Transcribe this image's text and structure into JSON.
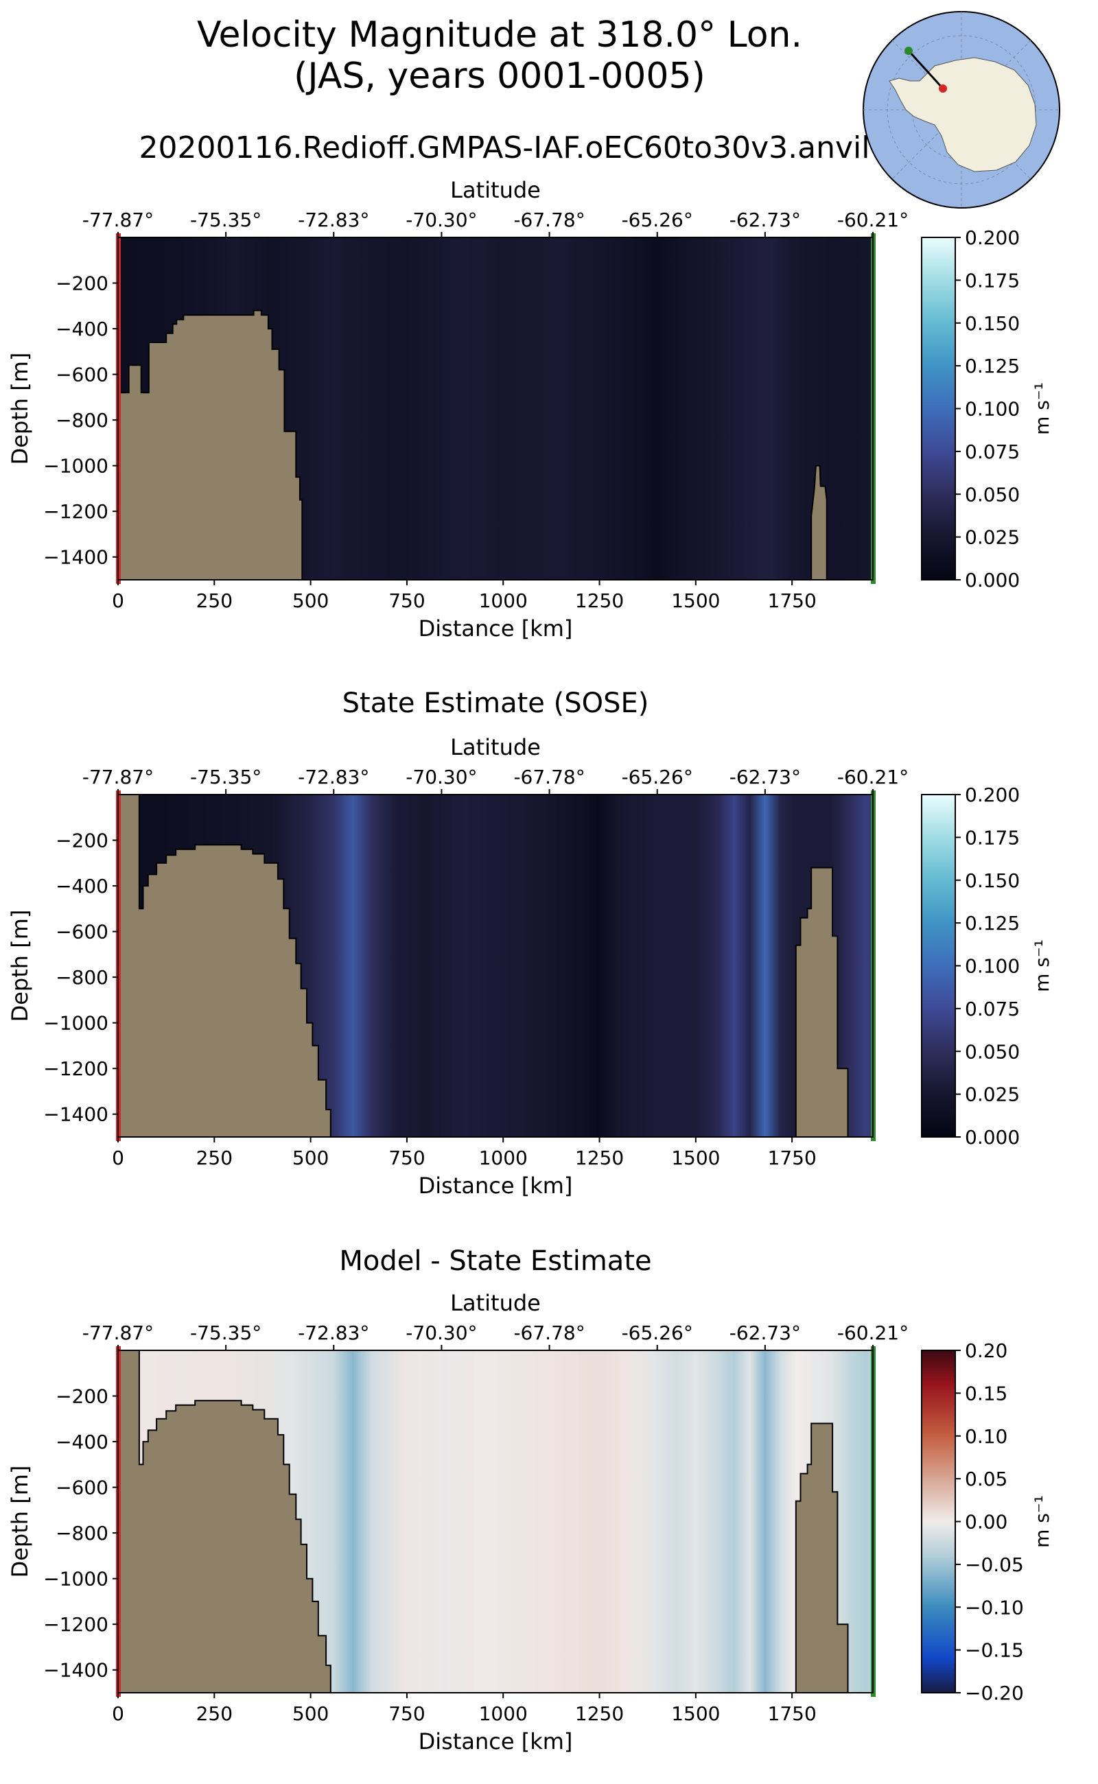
{
  "figure": {
    "title_line1": "Velocity Magnitude at 318.0° Lon.",
    "title_line2": "(JAS, years 0001-0005)",
    "run_name": "20200116.Redioff.GMPAS-IAF.oEC60to30v3.anvil"
  },
  "colors": {
    "land": "#8f8168",
    "start_marker": "#d62728",
    "end_marker": "#2a8a2a",
    "ocean_map": "#9bb8e4",
    "antarctica_map": "#f1eedd"
  },
  "chart_data": [
    {
      "type": "heatmap",
      "panel": "model",
      "title": "",
      "top_xlabel": "Latitude",
      "lat_ticks": [
        "-77.87°",
        "-75.35°",
        "-72.83°",
        "-70.30°",
        "-67.78°",
        "-65.26°",
        "-62.73°",
        "-60.21°"
      ],
      "xlabel": "Distance [km]",
      "x_ticks": [
        0,
        250,
        500,
        750,
        1000,
        1250,
        1500,
        1750
      ],
      "xlim": [
        0,
        1960
      ],
      "ylabel": "Depth [m]",
      "y_ticks": [
        -200,
        -400,
        -600,
        -800,
        -1000,
        -1200,
        -1400
      ],
      "ylim": [
        -1500,
        0
      ],
      "colorbar": {
        "label": "m s⁻¹",
        "min": 0,
        "max": 0.2,
        "ticks": [
          "0.000",
          "0.025",
          "0.050",
          "0.075",
          "0.100",
          "0.125",
          "0.150",
          "0.175",
          "0.200"
        ],
        "colormap": "ice"
      },
      "field_profile": [
        [
          0,
          0.012
        ],
        [
          150,
          0.015
        ],
        [
          250,
          0.02
        ],
        [
          300,
          0.025
        ],
        [
          400,
          0.018
        ],
        [
          480,
          0.022
        ],
        [
          560,
          0.028
        ],
        [
          600,
          0.025
        ],
        [
          750,
          0.02
        ],
        [
          900,
          0.028
        ],
        [
          1000,
          0.025
        ],
        [
          1150,
          0.027
        ],
        [
          1250,
          0.022
        ],
        [
          1330,
          0.018
        ],
        [
          1400,
          0.01
        ],
        [
          1460,
          0.018
        ],
        [
          1550,
          0.025
        ],
        [
          1650,
          0.032
        ],
        [
          1700,
          0.033
        ],
        [
          1750,
          0.025
        ],
        [
          1850,
          0.02
        ],
        [
          1960,
          0.022
        ]
      ],
      "bathymetry": [
        [
          0,
          -680
        ],
        [
          10,
          -680
        ],
        [
          28,
          -680
        ],
        [
          28,
          -560
        ],
        [
          60,
          -560
        ],
        [
          60,
          -680
        ],
        [
          80,
          -680
        ],
        [
          80,
          -460
        ],
        [
          105,
          -460
        ],
        [
          105,
          -460
        ],
        [
          125,
          -460
        ],
        [
          125,
          -420
        ],
        [
          142,
          -420
        ],
        [
          142,
          -380
        ],
        [
          152,
          -380
        ],
        [
          152,
          -360
        ],
        [
          170,
          -360
        ],
        [
          170,
          -340
        ],
        [
          352,
          -340
        ],
        [
          352,
          -320
        ],
        [
          372,
          -320
        ],
        [
          372,
          -340
        ],
        [
          390,
          -340
        ],
        [
          390,
          -400
        ],
        [
          400,
          -400
        ],
        [
          400,
          -490
        ],
        [
          418,
          -490
        ],
        [
          418,
          -580
        ],
        [
          432,
          -580
        ],
        [
          432,
          -850
        ],
        [
          462,
          -850
        ],
        [
          462,
          -1050
        ],
        [
          472,
          -1050
        ],
        [
          472,
          -1150
        ],
        [
          478,
          -1150
        ],
        [
          478,
          -1500
        ]
      ],
      "seamount": [
        [
          1800,
          -1500
        ],
        [
          1800,
          -1220
        ],
        [
          1808,
          -1100
        ],
        [
          1812,
          -1000
        ],
        [
          1822,
          -1000
        ],
        [
          1824,
          -1090
        ],
        [
          1836,
          -1090
        ],
        [
          1840,
          -1150
        ],
        [
          1840,
          -1500
        ]
      ]
    },
    {
      "type": "heatmap",
      "panel": "obs",
      "title": "State Estimate (SOSE)",
      "top_xlabel": "Latitude",
      "lat_ticks": [
        "-77.87°",
        "-75.35°",
        "-72.83°",
        "-70.30°",
        "-67.78°",
        "-65.26°",
        "-62.73°",
        "-60.21°"
      ],
      "xlabel": "Distance [km]",
      "x_ticks": [
        0,
        250,
        500,
        750,
        1000,
        1250,
        1500,
        1750
      ],
      "xlim": [
        0,
        1960
      ],
      "ylabel": "Depth [m]",
      "y_ticks": [
        -200,
        -400,
        -600,
        -800,
        -1000,
        -1200,
        -1400
      ],
      "ylim": [
        -1500,
        0
      ],
      "colorbar": {
        "label": "m s⁻¹",
        "min": 0,
        "max": 0.2,
        "ticks": [
          "0.000",
          "0.025",
          "0.050",
          "0.075",
          "0.100",
          "0.125",
          "0.150",
          "0.175",
          "0.200"
        ],
        "colormap": "ice"
      },
      "field_profile": [
        [
          0,
          0.01
        ],
        [
          200,
          0.015
        ],
        [
          400,
          0.022
        ],
        [
          500,
          0.04
        ],
        [
          560,
          0.055
        ],
        [
          610,
          0.085
        ],
        [
          660,
          0.05
        ],
        [
          720,
          0.03
        ],
        [
          800,
          0.025
        ],
        [
          900,
          0.032
        ],
        [
          1000,
          0.028
        ],
        [
          1100,
          0.025
        ],
        [
          1200,
          0.015
        ],
        [
          1250,
          0.008
        ],
        [
          1300,
          0.025
        ],
        [
          1400,
          0.03
        ],
        [
          1500,
          0.03
        ],
        [
          1560,
          0.045
        ],
        [
          1600,
          0.07
        ],
        [
          1640,
          0.04
        ],
        [
          1680,
          0.095
        ],
        [
          1720,
          0.04
        ],
        [
          1760,
          0.03
        ],
        [
          1850,
          0.03
        ],
        [
          1900,
          0.05
        ],
        [
          1940,
          0.065
        ],
        [
          1960,
          0.06
        ]
      ],
      "bathymetry": [
        [
          0,
          0
        ],
        [
          15,
          0
        ],
        [
          55,
          0
        ],
        [
          55,
          -500
        ],
        [
          65,
          -500
        ],
        [
          65,
          -400
        ],
        [
          78,
          -400
        ],
        [
          78,
          -350
        ],
        [
          100,
          -350
        ],
        [
          100,
          -300
        ],
        [
          125,
          -300
        ],
        [
          125,
          -265
        ],
        [
          150,
          -265
        ],
        [
          150,
          -240
        ],
        [
          200,
          -240
        ],
        [
          200,
          -220
        ],
        [
          320,
          -220
        ],
        [
          320,
          -240
        ],
        [
          350,
          -240
        ],
        [
          350,
          -260
        ],
        [
          380,
          -260
        ],
        [
          380,
          -300
        ],
        [
          415,
          -300
        ],
        [
          415,
          -370
        ],
        [
          430,
          -370
        ],
        [
          430,
          -500
        ],
        [
          445,
          -500
        ],
        [
          445,
          -630
        ],
        [
          462,
          -630
        ],
        [
          462,
          -740
        ],
        [
          475,
          -740
        ],
        [
          475,
          -850
        ],
        [
          490,
          -850
        ],
        [
          490,
          -1000
        ],
        [
          505,
          -1000
        ],
        [
          505,
          -1100
        ],
        [
          520,
          -1100
        ],
        [
          520,
          -1250
        ],
        [
          540,
          -1250
        ],
        [
          540,
          -1380
        ],
        [
          552,
          -1380
        ],
        [
          552,
          -1500
        ]
      ],
      "seamount": [
        [
          1760,
          -1500
        ],
        [
          1760,
          -660
        ],
        [
          1772,
          -660
        ],
        [
          1772,
          -540
        ],
        [
          1790,
          -540
        ],
        [
          1790,
          -500
        ],
        [
          1800,
          -500
        ],
        [
          1800,
          -320
        ],
        [
          1855,
          -320
        ],
        [
          1855,
          -620
        ],
        [
          1868,
          -620
        ],
        [
          1868,
          -1200
        ],
        [
          1895,
          -1200
        ],
        [
          1895,
          -1500
        ]
      ]
    },
    {
      "type": "heatmap",
      "panel": "difference",
      "title": "Model - State Estimate",
      "top_xlabel": "Latitude",
      "lat_ticks": [
        "-77.87°",
        "-75.35°",
        "-72.83°",
        "-70.30°",
        "-67.78°",
        "-65.26°",
        "-62.73°",
        "-60.21°"
      ],
      "xlabel": "Distance [km]",
      "x_ticks": [
        0,
        250,
        500,
        750,
        1000,
        1250,
        1500,
        1750
      ],
      "xlim": [
        0,
        1960
      ],
      "ylabel": "Depth [m]",
      "y_ticks": [
        -200,
        -400,
        -600,
        -800,
        -1000,
        -1200,
        -1400
      ],
      "ylim": [
        -1500,
        0
      ],
      "colorbar": {
        "label": "m s⁻¹",
        "min": -0.2,
        "max": 0.2,
        "ticks": [
          "−0.20",
          "−0.15",
          "−0.10",
          "−0.05",
          "0.00",
          "0.05",
          "0.10",
          "0.15",
          "0.20"
        ],
        "colormap": "balance"
      },
      "field_profile": [
        [
          0,
          0.003
        ],
        [
          300,
          0.006
        ],
        [
          450,
          -0.01
        ],
        [
          560,
          -0.025
        ],
        [
          610,
          -0.06
        ],
        [
          660,
          -0.02
        ],
        [
          750,
          0.004
        ],
        [
          850,
          -0.005
        ],
        [
          950,
          0.003
        ],
        [
          1100,
          0.005
        ],
        [
          1250,
          0.01
        ],
        [
          1330,
          0.004
        ],
        [
          1400,
          -0.01
        ],
        [
          1450,
          -0.02
        ],
        [
          1500,
          -0.01
        ],
        [
          1560,
          -0.025
        ],
        [
          1600,
          -0.04
        ],
        [
          1640,
          -0.01
        ],
        [
          1680,
          -0.06
        ],
        [
          1720,
          -0.02
        ],
        [
          1760,
          0.0
        ],
        [
          1850,
          -0.01
        ],
        [
          1900,
          -0.03
        ],
        [
          1940,
          -0.04
        ],
        [
          1960,
          -0.035
        ]
      ],
      "bathymetry": [
        [
          0,
          0
        ],
        [
          15,
          0
        ],
        [
          55,
          0
        ],
        [
          55,
          -500
        ],
        [
          65,
          -500
        ],
        [
          65,
          -400
        ],
        [
          78,
          -400
        ],
        [
          78,
          -350
        ],
        [
          100,
          -350
        ],
        [
          100,
          -300
        ],
        [
          125,
          -300
        ],
        [
          125,
          -265
        ],
        [
          150,
          -265
        ],
        [
          150,
          -240
        ],
        [
          200,
          -240
        ],
        [
          200,
          -220
        ],
        [
          320,
          -220
        ],
        [
          320,
          -240
        ],
        [
          350,
          -240
        ],
        [
          350,
          -260
        ],
        [
          380,
          -260
        ],
        [
          380,
          -300
        ],
        [
          415,
          -300
        ],
        [
          415,
          -370
        ],
        [
          430,
          -370
        ],
        [
          430,
          -500
        ],
        [
          445,
          -500
        ],
        [
          445,
          -630
        ],
        [
          462,
          -630
        ],
        [
          462,
          -740
        ],
        [
          475,
          -740
        ],
        [
          475,
          -850
        ],
        [
          490,
          -850
        ],
        [
          490,
          -1000
        ],
        [
          505,
          -1000
        ],
        [
          505,
          -1100
        ],
        [
          520,
          -1100
        ],
        [
          520,
          -1250
        ],
        [
          540,
          -1250
        ],
        [
          540,
          -1380
        ],
        [
          552,
          -1380
        ],
        [
          552,
          -1500
        ]
      ],
      "seamount": [
        [
          1760,
          -1500
        ],
        [
          1760,
          -660
        ],
        [
          1772,
          -660
        ],
        [
          1772,
          -540
        ],
        [
          1790,
          -540
        ],
        [
          1790,
          -500
        ],
        [
          1800,
          -500
        ],
        [
          1800,
          -320
        ],
        [
          1855,
          -320
        ],
        [
          1855,
          -620
        ],
        [
          1868,
          -620
        ],
        [
          1868,
          -1200
        ],
        [
          1895,
          -1200
        ],
        [
          1895,
          -1500
        ]
      ]
    }
  ]
}
